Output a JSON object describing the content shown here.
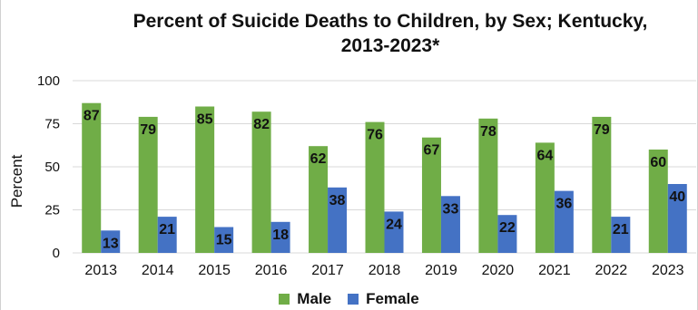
{
  "chart_data": {
    "type": "bar",
    "title_line1": "Percent of Suicide Deaths to Children, by Sex; Kentucky,",
    "title_line2": "2013-2023*",
    "ylabel": "Percent",
    "xlabel": "",
    "ylim": [
      0,
      100
    ],
    "yticks": [
      0,
      25,
      50,
      75,
      100
    ],
    "categories": [
      "2013",
      "2014",
      "2015",
      "2016",
      "2017",
      "2018",
      "2019",
      "2020",
      "2021",
      "2022",
      "2023"
    ],
    "series": [
      {
        "name": "Male",
        "color": "#70ad47",
        "values": [
          87,
          79,
          85,
          82,
          62,
          76,
          67,
          78,
          64,
          79,
          60
        ]
      },
      {
        "name": "Female",
        "color": "#4472c4",
        "values": [
          13,
          21,
          15,
          18,
          38,
          24,
          33,
          22,
          36,
          21,
          40
        ]
      }
    ],
    "grid": true,
    "legend_position": "bottom"
  }
}
